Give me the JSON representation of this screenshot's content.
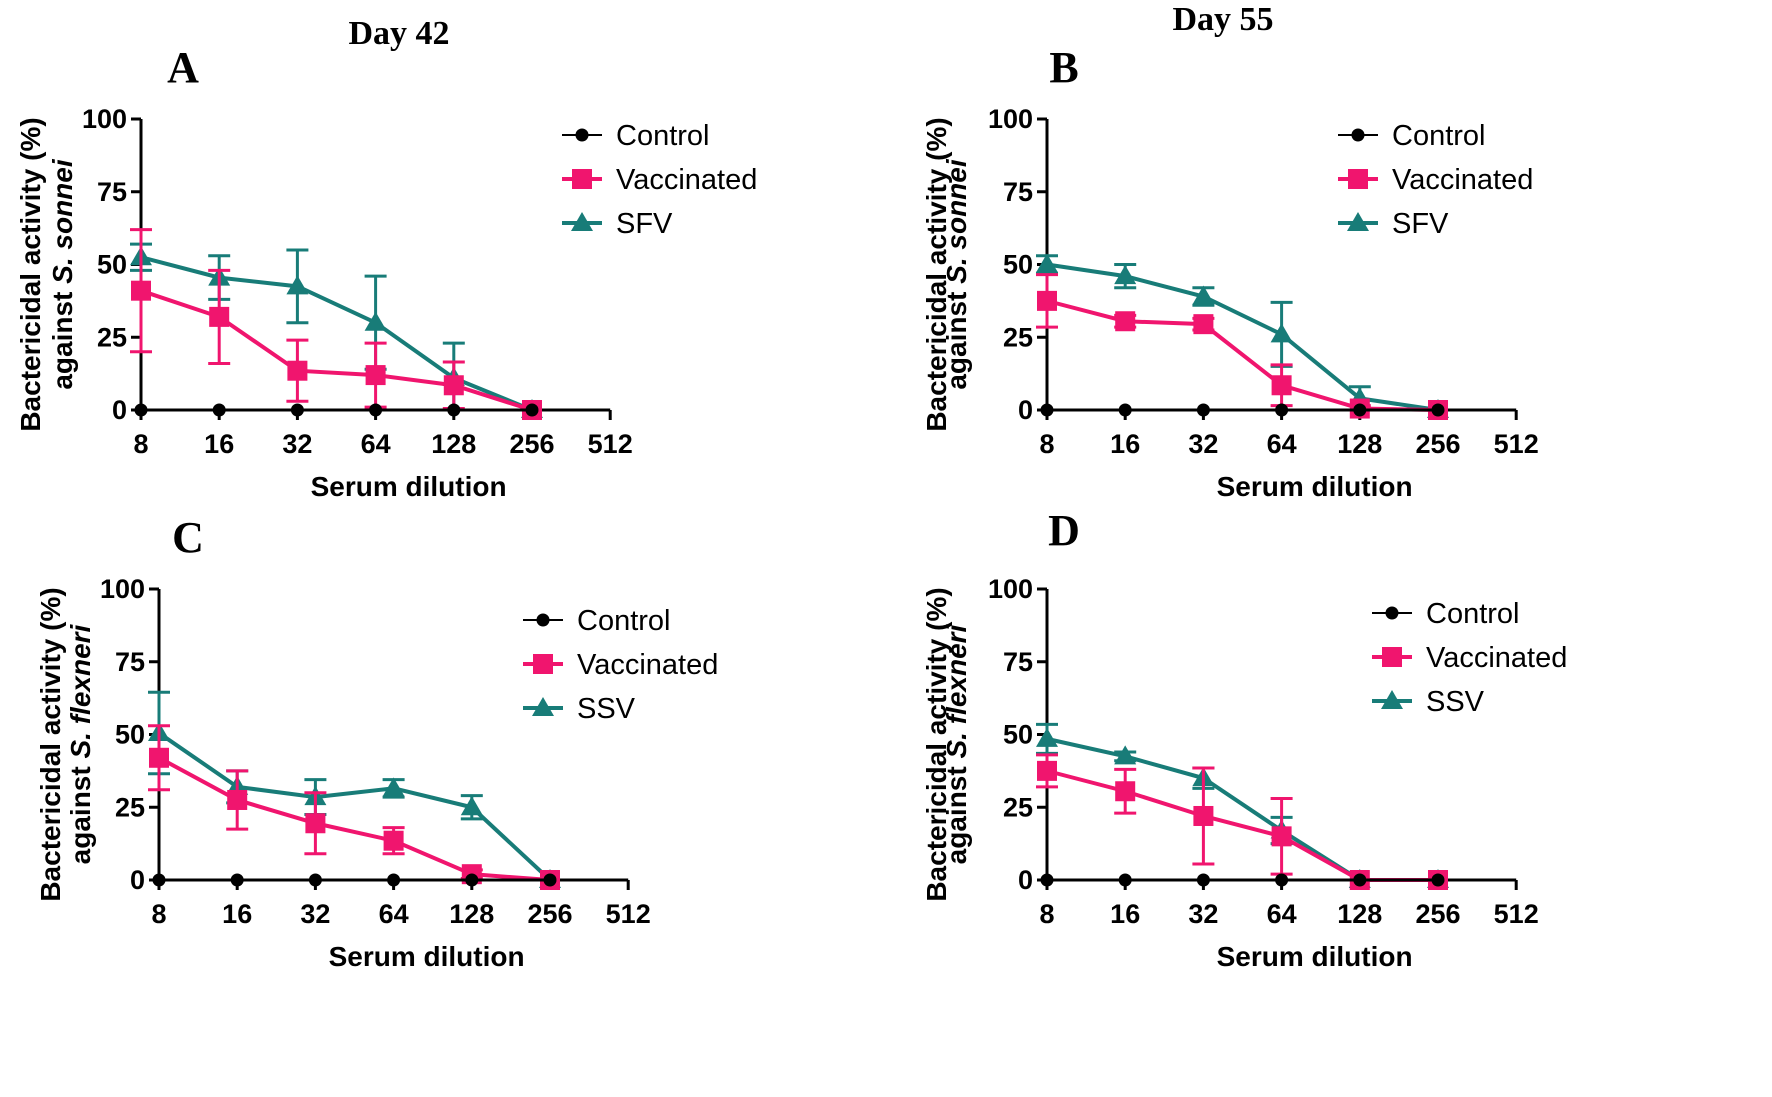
{
  "figure": {
    "colors": {
      "control": "#000000",
      "vaccinated": "#f0156e",
      "comparator": "#187c78",
      "axis": "#000000"
    }
  },
  "chart_data": [
    {
      "panel": "A",
      "day_title": "Day 42",
      "type": "line",
      "xlabel": "Serum dilution",
      "ylabel_line1": "Bactericidal activity (%)",
      "ylabel_line2_prefix": "against ",
      "ylabel_line2_species": "S. sonnei",
      "x_ticks": [
        "8",
        "16",
        "32",
        "64",
        "128",
        "256",
        "512"
      ],
      "y_ticks": [
        "0",
        "25",
        "50",
        "75",
        "100"
      ],
      "ylim": [
        0,
        100
      ],
      "legend": [
        "Control",
        "Vaccinated",
        "SFV"
      ],
      "series": [
        {
          "name": "Control",
          "marker": "circle",
          "color_key": "control",
          "values": [
            0,
            0,
            0,
            0,
            0,
            0
          ],
          "err": [
            0,
            0,
            0,
            0,
            0,
            0
          ]
        },
        {
          "name": "Vaccinated",
          "marker": "square",
          "color_key": "vaccinated",
          "values": [
            41,
            32,
            13.5,
            12,
            8.5,
            0
          ],
          "err": [
            21,
            16,
            10.5,
            11,
            8,
            0
          ]
        },
        {
          "name": "SFV",
          "marker": "triangle",
          "color_key": "comparator",
          "values": [
            52.5,
            45.5,
            42.5,
            30,
            11,
            0
          ],
          "err": [
            4.5,
            7.5,
            12.5,
            16,
            12,
            0
          ]
        }
      ]
    },
    {
      "panel": "B",
      "day_title": "Day 55",
      "type": "line",
      "xlabel": "Serum dilution",
      "ylabel_line1": "Bactericidal activity (%)",
      "ylabel_line2_prefix": "against ",
      "ylabel_line2_species": "S. sonnei",
      "x_ticks": [
        "8",
        "16",
        "32",
        "64",
        "128",
        "256",
        "512"
      ],
      "y_ticks": [
        "0",
        "25",
        "50",
        "75",
        "100"
      ],
      "ylim": [
        0,
        100
      ],
      "legend": [
        "Control",
        "Vaccinated",
        "SFV"
      ],
      "series": [
        {
          "name": "Control",
          "marker": "circle",
          "color_key": "control",
          "values": [
            0,
            0,
            0,
            0,
            0,
            0
          ],
          "err": [
            0,
            0,
            0,
            0,
            0,
            0
          ]
        },
        {
          "name": "Vaccinated",
          "marker": "square",
          "color_key": "vaccinated",
          "values": [
            37.5,
            30.5,
            29.5,
            8.5,
            0.5,
            0
          ],
          "err": [
            9,
            2,
            2,
            7,
            1,
            0
          ]
        },
        {
          "name": "SFV",
          "marker": "triangle",
          "color_key": "comparator",
          "values": [
            50,
            46,
            39,
            26,
            4,
            0
          ],
          "err": [
            3,
            4,
            3,
            11,
            4,
            0
          ]
        }
      ]
    },
    {
      "panel": "C",
      "day_title": "",
      "type": "line",
      "xlabel": "Serum dilution",
      "ylabel_line1": "Bactericidal activity (%)",
      "ylabel_line2_prefix": "against ",
      "ylabel_line2_species": "S. flexneri",
      "x_ticks": [
        "8",
        "16",
        "32",
        "64",
        "128",
        "256",
        "512"
      ],
      "y_ticks": [
        "0",
        "25",
        "50",
        "75",
        "100"
      ],
      "ylim": [
        0,
        100
      ],
      "legend": [
        "Control",
        "Vaccinated",
        "SSV"
      ],
      "series": [
        {
          "name": "Control",
          "marker": "circle",
          "color_key": "control",
          "values": [
            0,
            0,
            0,
            0,
            0,
            0
          ],
          "err": [
            0,
            0,
            0,
            0,
            0,
            0
          ]
        },
        {
          "name": "Vaccinated",
          "marker": "square",
          "color_key": "vaccinated",
          "values": [
            42,
            27.5,
            19.5,
            13.5,
            2,
            0
          ],
          "err": [
            11,
            10,
            10.5,
            4.5,
            1.5,
            0
          ]
        },
        {
          "name": "SSV",
          "marker": "triangle",
          "color_key": "comparator",
          "values": [
            50.5,
            32,
            28.5,
            31.5,
            25,
            0
          ],
          "err": [
            14,
            5.5,
            6,
            3,
            4,
            0
          ]
        }
      ]
    },
    {
      "panel": "D",
      "day_title": "",
      "type": "line",
      "xlabel": "Serum dilution",
      "ylabel_line1": "Bactericidal activity (%)",
      "ylabel_line2_prefix": "against ",
      "ylabel_line2_species": "S. flexneri",
      "x_ticks": [
        "8",
        "16",
        "32",
        "64",
        "128",
        "256",
        "512"
      ],
      "y_ticks": [
        "0",
        "25",
        "50",
        "75",
        "100"
      ],
      "ylim": [
        0,
        100
      ],
      "legend": [
        "Control",
        "Vaccinated",
        "SSV"
      ],
      "series": [
        {
          "name": "Control",
          "marker": "circle",
          "color_key": "control",
          "values": [
            0,
            0,
            0,
            0,
            0,
            0
          ],
          "err": [
            0,
            0,
            0,
            0,
            0,
            0
          ]
        },
        {
          "name": "Vaccinated",
          "marker": "square",
          "color_key": "vaccinated",
          "values": [
            37.5,
            30.5,
            22,
            15,
            0,
            0
          ],
          "err": [
            5.5,
            7.5,
            16.5,
            13,
            0,
            0
          ]
        },
        {
          "name": "SSV",
          "marker": "triangle",
          "color_key": "comparator",
          "values": [
            48.5,
            42.5,
            35,
            17,
            0,
            0
          ],
          "err": [
            5,
            1.5,
            3.5,
            4.5,
            0,
            0
          ]
        }
      ]
    }
  ]
}
